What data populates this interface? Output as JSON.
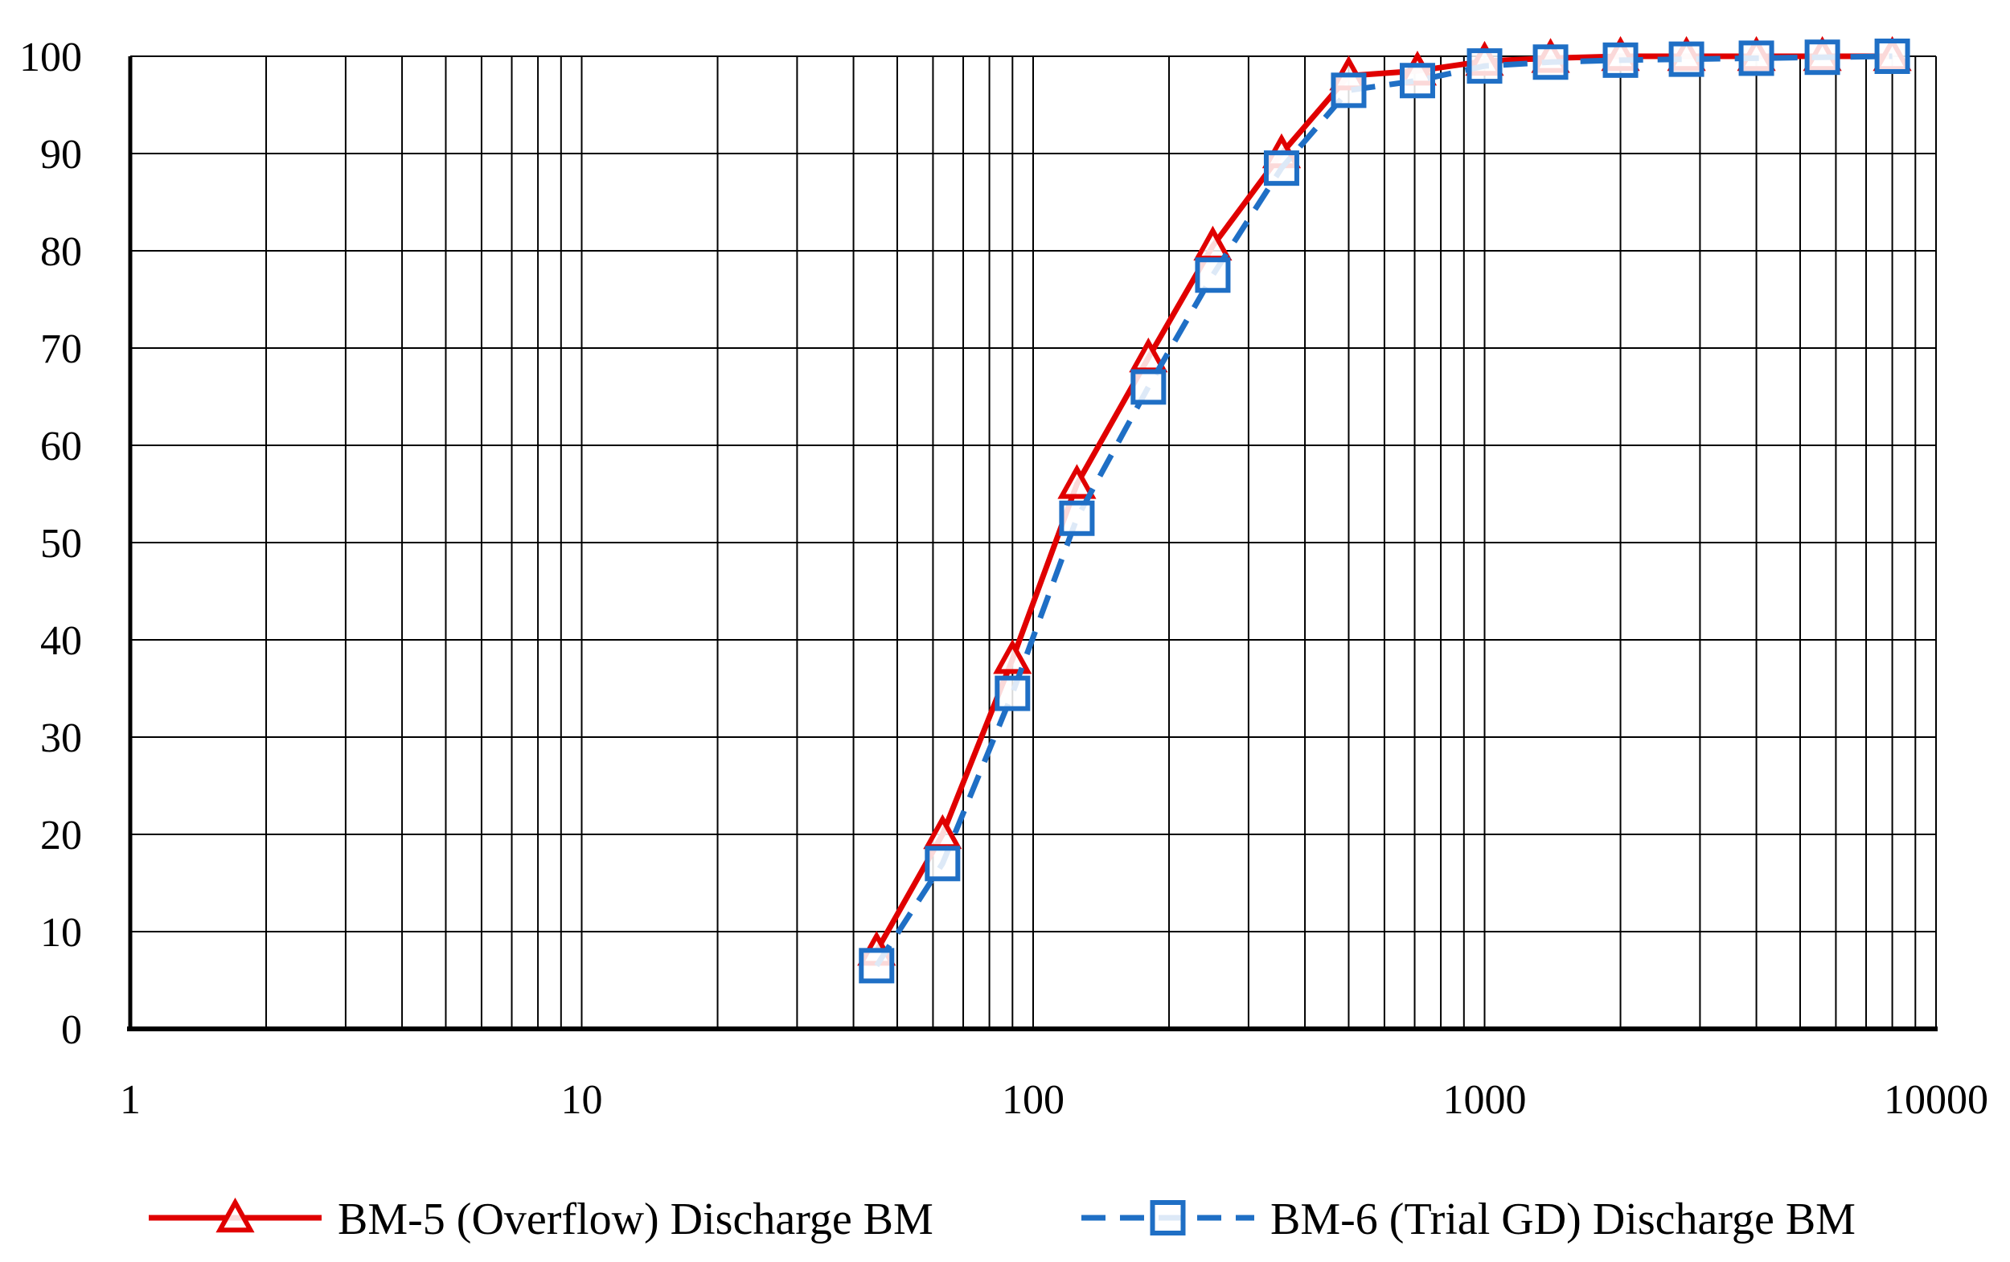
{
  "chart_data": {
    "type": "line",
    "title": "",
    "xlabel": "",
    "ylabel": "",
    "x_scale": "log",
    "xlim": [
      1,
      10000
    ],
    "ylim": [
      0,
      100
    ],
    "grid": true,
    "legend_position": "bottom",
    "x_tick_labels": [
      "1",
      "10",
      "100",
      "1000",
      "10000"
    ],
    "y_tick_labels": [
      "0",
      "10",
      "20",
      "30",
      "40",
      "50",
      "60",
      "70",
      "80",
      "90",
      "100"
    ],
    "series": [
      {
        "name": "BM-5 (Overflow)  Discharge BM",
        "color": "#e00000",
        "line_style": "solid",
        "marker": "triangle",
        "x": [
          45,
          63,
          90,
          125,
          180,
          250,
          355,
          500,
          710,
          1000,
          1400,
          2000,
          2800,
          4000,
          5600,
          8000
        ],
        "y": [
          8,
          20,
          38,
          56,
          69,
          80.5,
          90,
          98,
          98.5,
          99.5,
          99.8,
          100,
          100,
          100,
          100,
          100
        ]
      },
      {
        "name": "BM-6 (Trial GD) Discharge BM",
        "color": "#1f6fc5",
        "line_style": "dashed",
        "marker": "square",
        "x": [
          45,
          63,
          90,
          125,
          180,
          250,
          355,
          500,
          710,
          1000,
          1400,
          2000,
          2800,
          4000,
          5600,
          8000
        ],
        "y": [
          6.5,
          17,
          34.5,
          52.5,
          66,
          77.5,
          88.5,
          96.5,
          97.5,
          99,
          99.4,
          99.6,
          99.7,
          99.8,
          99.9,
          100
        ]
      }
    ]
  }
}
